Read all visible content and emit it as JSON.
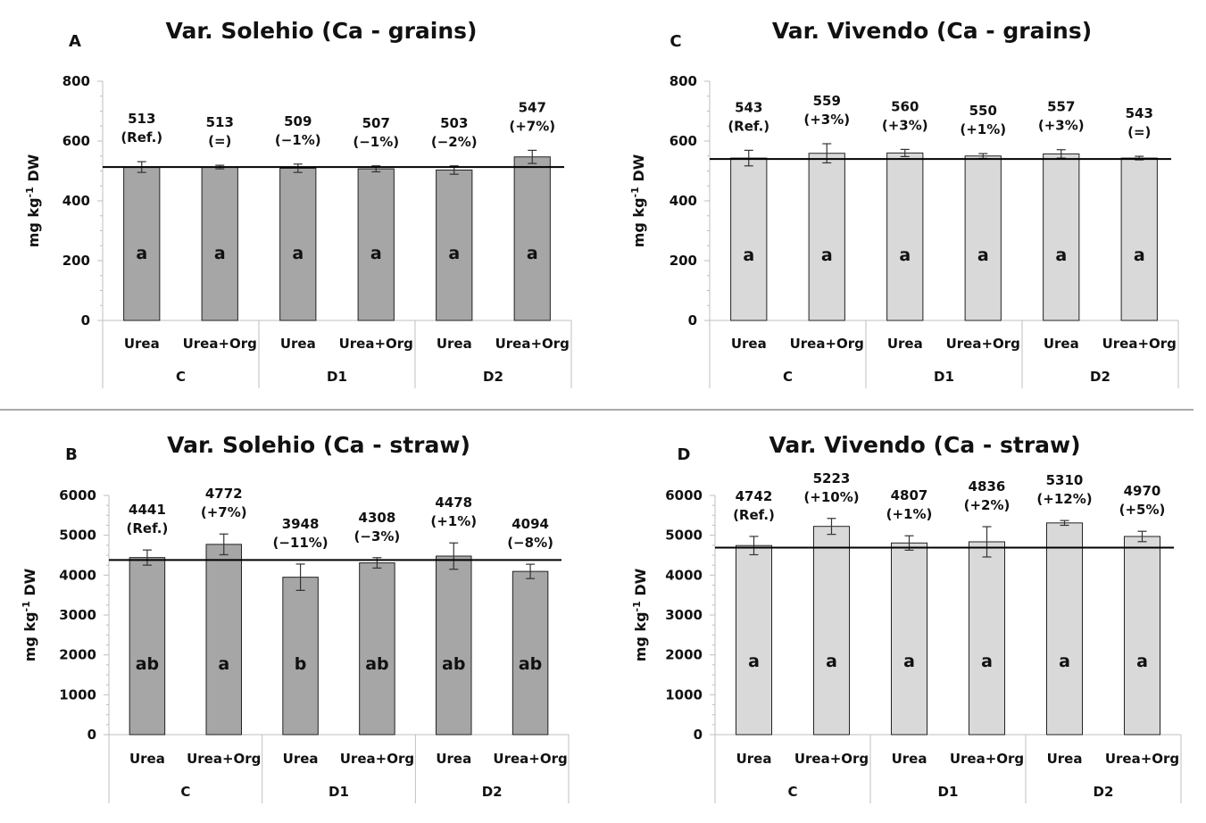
{
  "chart_data": [
    {
      "id": "A",
      "type": "bar",
      "panel_label": "A",
      "title": "Var. Solehio (Ca - grains)",
      "ylabel_main": "mg kg",
      "ylabel_sup": "-1",
      "ylabel_tail": " DW",
      "ylim": [
        0,
        800
      ],
      "yticks": [
        "0",
        "200",
        "400",
        "600",
        "800"
      ],
      "reference_value": 513,
      "bar_color": "#a6a6a6",
      "categories": [
        "Urea",
        "Urea+Org",
        "Urea",
        "Urea+Org",
        "Urea",
        "Urea+Org"
      ],
      "groups": [
        "C",
        "D1",
        "D2"
      ],
      "values": [
        513,
        513,
        509,
        507,
        503,
        547
      ],
      "errors": [
        18,
        6,
        14,
        10,
        14,
        22
      ],
      "value_labels": [
        "513",
        "513",
        "509",
        "507",
        "503",
        "547"
      ],
      "change_labels": [
        "(Ref.)",
        "(=)",
        "(−1%)",
        "(−1%)",
        "(−2%)",
        "(+7%)"
      ],
      "letters": [
        "a",
        "a",
        "a",
        "a",
        "a",
        "a"
      ]
    },
    {
      "id": "B",
      "type": "bar",
      "panel_label": "B",
      "title": "Var. Solehio (Ca - straw)",
      "ylabel_main": "mg kg",
      "ylabel_sup": "-1",
      "ylabel_tail": " DW",
      "ylim": [
        0,
        6000
      ],
      "yticks": [
        "0",
        "1000",
        "2000",
        "3000",
        "4000",
        "5000",
        "6000"
      ],
      "reference_value": 4380,
      "bar_color": "#a6a6a6",
      "categories": [
        "Urea",
        "Urea+Org",
        "Urea",
        "Urea+Org",
        "Urea",
        "Urea+Org"
      ],
      "groups": [
        "C",
        "D1",
        "D2"
      ],
      "values": [
        4441,
        4772,
        3948,
        4308,
        4478,
        4094
      ],
      "errors": [
        190,
        260,
        330,
        130,
        330,
        180
      ],
      "value_labels": [
        "4441",
        "4772",
        "3948",
        "4308",
        "4478",
        "4094"
      ],
      "change_labels": [
        "(Ref.)",
        "(+7%)",
        "(−11%)",
        "(−3%)",
        "(+1%)",
        "(−8%)"
      ],
      "letters": [
        "ab",
        "a",
        "b",
        "ab",
        "ab",
        "ab"
      ]
    },
    {
      "id": "C",
      "type": "bar",
      "panel_label": "C",
      "title": "Var. Vivendo (Ca - grains)",
      "ylabel_main": "mg kg",
      "ylabel_sup": "-1",
      "ylabel_tail": " DW",
      "ylim": [
        0,
        800
      ],
      "yticks": [
        "0",
        "200",
        "400",
        "600",
        "800"
      ],
      "reference_value": 540,
      "bar_color": "#d9d9d9",
      "categories": [
        "Urea",
        "Urea+Org",
        "Urea",
        "Urea+Org",
        "Urea",
        "Urea+Org"
      ],
      "groups": [
        "C",
        "D1",
        "D2"
      ],
      "values": [
        543,
        559,
        560,
        550,
        557,
        543
      ],
      "errors": [
        26,
        32,
        12,
        8,
        14,
        6
      ],
      "value_labels": [
        "543",
        "559",
        "560",
        "550",
        "557",
        "543"
      ],
      "change_labels": [
        "(Ref.)",
        "(+3%)",
        "(+3%)",
        "(+1%)",
        "(+3%)",
        "(=)"
      ],
      "letters": [
        "a",
        "a",
        "a",
        "a",
        "a",
        "a"
      ]
    },
    {
      "id": "D",
      "type": "bar",
      "panel_label": "D",
      "title": "Var. Vivendo (Ca - straw)",
      "ylabel_main": "mg kg",
      "ylabel_sup": "-1",
      "ylabel_tail": " DW",
      "ylim": [
        0,
        6000
      ],
      "yticks": [
        "0",
        "1000",
        "2000",
        "3000",
        "4000",
        "5000",
        "6000"
      ],
      "reference_value": 4690,
      "bar_color": "#d9d9d9",
      "categories": [
        "Urea",
        "Urea+Org",
        "Urea",
        "Urea+Org",
        "Urea",
        "Urea+Org"
      ],
      "groups": [
        "C",
        "D1",
        "D2"
      ],
      "values": [
        4742,
        5223,
        4807,
        4836,
        5310,
        4970
      ],
      "errors": [
        230,
        200,
        180,
        380,
        60,
        130
      ],
      "value_labels": [
        "4742",
        "5223",
        "4807",
        "4836",
        "5310",
        "4970"
      ],
      "change_labels": [
        "(Ref.)",
        "(+10%)",
        "(+1%)",
        "(+2%)",
        "(+12%)",
        "(+5%)"
      ],
      "letters": [
        "a",
        "a",
        "a",
        "a",
        "a",
        "a"
      ]
    }
  ]
}
